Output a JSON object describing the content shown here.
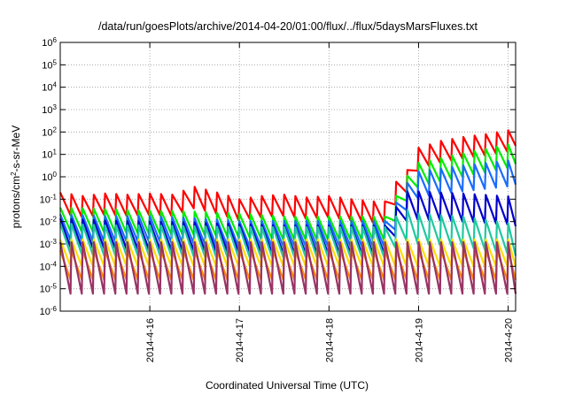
{
  "chart_data": {
    "type": "line",
    "title": "/data/run/goesPlots/archive/2014-04-20/01:00/flux/../flux/5daysMarsFluxes.txt",
    "xlabel": "Coordinated Universal Time (UTC)",
    "ylabel": "protons/cm²-s-sr-MeV",
    "ylabel_parts": {
      "pre": "protons/cm",
      "sup": "2",
      "post": "-s-sr-MeV"
    },
    "y_scale": "log",
    "ylim": [
      1e-06,
      1000000.0
    ],
    "y_ticks": [
      {
        "value": 1e-06,
        "base": "10",
        "exp": "-6"
      },
      {
        "value": 1e-05,
        "base": "10",
        "exp": "-5"
      },
      {
        "value": 0.0001,
        "base": "10",
        "exp": "-4"
      },
      {
        "value": 0.001,
        "base": "10",
        "exp": "-3"
      },
      {
        "value": 0.01,
        "base": "10",
        "exp": "-2"
      },
      {
        "value": 0.1,
        "base": "10",
        "exp": "-1"
      },
      {
        "value": 1,
        "base": "10",
        "exp": "0"
      },
      {
        "value": 10.0,
        "base": "10",
        "exp": "1"
      },
      {
        "value": 100.0,
        "base": "10",
        "exp": "2"
      },
      {
        "value": 1000.0,
        "base": "10",
        "exp": "3"
      },
      {
        "value": 10000.0,
        "base": "10",
        "exp": "4"
      },
      {
        "value": 100000.0,
        "base": "10",
        "exp": "5"
      },
      {
        "value": 1000000.0,
        "base": "10",
        "exp": "6"
      }
    ],
    "xlim": [
      "2014-04-15T00:00",
      "2014-04-20T02:00"
    ],
    "x_ticks": [
      "2014-4-16",
      "2014-4-17",
      "2014-4-18",
      "2014-4-19",
      "2014-4-20"
    ],
    "x_tick_dates": [
      "2014-04-16T00:00",
      "2014-04-17T00:00",
      "2014-04-18T00:00",
      "2014-04-19T00:00",
      "2014-04-20T00:00"
    ],
    "grid": true,
    "series": [
      {
        "color": "#ff0000",
        "x": [
          "2014-04-15T00:00",
          "2014-04-15T06:00",
          "2014-04-15T12:00",
          "2014-04-15T18:00",
          "2014-04-16T00:00",
          "2014-04-16T06:00",
          "2014-04-16T12:00",
          "2014-04-16T18:00",
          "2014-04-17T00:00",
          "2014-04-17T06:00",
          "2014-04-17T12:00",
          "2014-04-17T18:00",
          "2014-04-18T00:00",
          "2014-04-18T06:00",
          "2014-04-18T12:00",
          "2014-04-18T15:00",
          "2014-04-18T18:00",
          "2014-04-18T21:00",
          "2014-04-19T00:00",
          "2014-04-19T06:00",
          "2014-04-19T12:00",
          "2014-04-19T18:00",
          "2014-04-20T00:00",
          "2014-04-20T02:00"
        ],
        "y": [
          0.1,
          0.07,
          0.09,
          0.08,
          0.09,
          0.08,
          0.18,
          0.1,
          0.05,
          0.07,
          0.08,
          0.06,
          0.07,
          0.05,
          0.04,
          0.04,
          0.3,
          1,
          10,
          20,
          30,
          40,
          60,
          110
        ],
        "saw": [
          0.3,
          0.65
        ]
      },
      {
        "color": "#00ee00",
        "x": [
          "2014-04-15T00:00",
          "2014-04-15T12:00",
          "2014-04-16T00:00",
          "2014-04-16T12:00",
          "2014-04-17T00:00",
          "2014-04-17T12:00",
          "2014-04-18T00:00",
          "2014-04-18T12:00",
          "2014-04-18T15:00",
          "2014-04-18T18:00",
          "2014-04-18T21:00",
          "2014-04-19T00:00",
          "2014-04-19T12:00",
          "2014-04-20T00:00",
          "2014-04-20T02:00"
        ],
        "y": [
          0.015,
          0.013,
          0.011,
          0.01,
          0.008,
          0.006,
          0.006,
          0.006,
          0.006,
          0.05,
          0.4,
          1.5,
          4,
          10,
          15
        ],
        "saw": [
          0.45,
          0.6
        ]
      },
      {
        "color": "#1a6cff",
        "x": [
          "2014-04-15T00:00",
          "2014-04-15T12:00",
          "2014-04-16T00:00",
          "2014-04-16T12:00",
          "2014-04-17T00:00",
          "2014-04-17T12:00",
          "2014-04-18T00:00",
          "2014-04-18T12:00",
          "2014-04-18T15:00",
          "2014-04-18T18:00",
          "2014-04-18T21:00",
          "2014-04-19T00:00",
          "2014-04-19T12:00",
          "2014-04-20T00:00",
          "2014-04-20T02:00"
        ],
        "y": [
          0.006,
          0.005,
          0.005,
          0.004,
          0.003,
          0.003,
          0.003,
          0.003,
          0.003,
          0.02,
          0.15,
          0.5,
          0.9,
          1.5,
          1.8
        ],
        "saw": [
          0.55,
          0.6
        ]
      },
      {
        "color": "#0000cc",
        "x": [
          "2014-04-15T00:00",
          "2014-04-15T12:00",
          "2014-04-16T00:00",
          "2014-04-16T12:00",
          "2014-04-17T00:00",
          "2014-04-17T12:00",
          "2014-04-18T00:00",
          "2014-04-18T12:00",
          "2014-04-18T15:00",
          "2014-04-18T18:00",
          "2014-04-18T21:00",
          "2014-04-19T00:00",
          "2014-04-19T12:00",
          "2014-04-20T00:00",
          "2014-04-20T02:00"
        ],
        "y": [
          0.003,
          0.0025,
          0.0022,
          0.002,
          0.0017,
          0.0015,
          0.0015,
          0.0015,
          0.0015,
          0.01,
          0.05,
          0.05,
          0.04,
          0.03,
          0.025
        ],
        "saw": [
          0.65,
          0.6
        ]
      },
      {
        "color": "#20c8a0",
        "x": [
          "2014-04-15T00:00",
          "2014-04-15T12:00",
          "2014-04-16T00:00",
          "2014-04-16T12:00",
          "2014-04-17T00:00",
          "2014-04-17T12:00",
          "2014-04-18T00:00",
          "2014-04-18T12:00",
          "2014-04-18T15:00",
          "2014-04-18T18:00",
          "2014-04-18T21:00",
          "2014-04-19T00:00",
          "2014-04-19T12:00",
          "2014-04-20T00:00",
          "2014-04-20T02:00"
        ],
        "y": [
          0.0015,
          0.0012,
          0.0012,
          0.0011,
          0.001,
          0.001,
          0.001,
          0.001,
          0.001,
          0.003,
          0.006,
          0.004,
          0.003,
          0.0015,
          0.0012
        ],
        "saw": [
          0.75,
          0.6
        ]
      },
      {
        "color": "#ffdd00",
        "x": [
          "2014-04-15T00:00",
          "2014-04-16T00:00",
          "2014-04-17T00:00",
          "2014-04-18T00:00",
          "2014-04-19T00:00",
          "2014-04-20T00:00",
          "2014-04-20T02:00"
        ],
        "y": [
          0.0004,
          0.0004,
          0.0004,
          0.0004,
          0.0004,
          0.0004,
          0.0004
        ],
        "saw": [
          0.6,
          0.6
        ]
      },
      {
        "color": "#ff8800",
        "x": [
          "2014-04-15T00:00",
          "2014-04-16T00:00",
          "2014-04-17T00:00",
          "2014-04-18T00:00",
          "2014-04-19T00:00",
          "2014-04-20T00:00",
          "2014-04-20T02:00"
        ],
        "y": [
          0.0001,
          0.0001,
          0.0001,
          0.0001,
          0.0001,
          0.0001,
          0.0001
        ],
        "saw": [
          0.7,
          0.6
        ]
      },
      {
        "color": "#993366",
        "x": [
          "2014-04-15T00:00",
          "2014-04-16T00:00",
          "2014-04-17T00:00",
          "2014-04-18T00:00",
          "2014-04-19T00:00",
          "2014-04-20T00:00",
          "2014-04-20T02:00"
        ],
        "y": [
          0.00012,
          0.00012,
          0.00012,
          0.00012,
          0.00012,
          0.00012,
          0.00012
        ],
        "saw": [
          1.0,
          1.3
        ]
      }
    ]
  }
}
